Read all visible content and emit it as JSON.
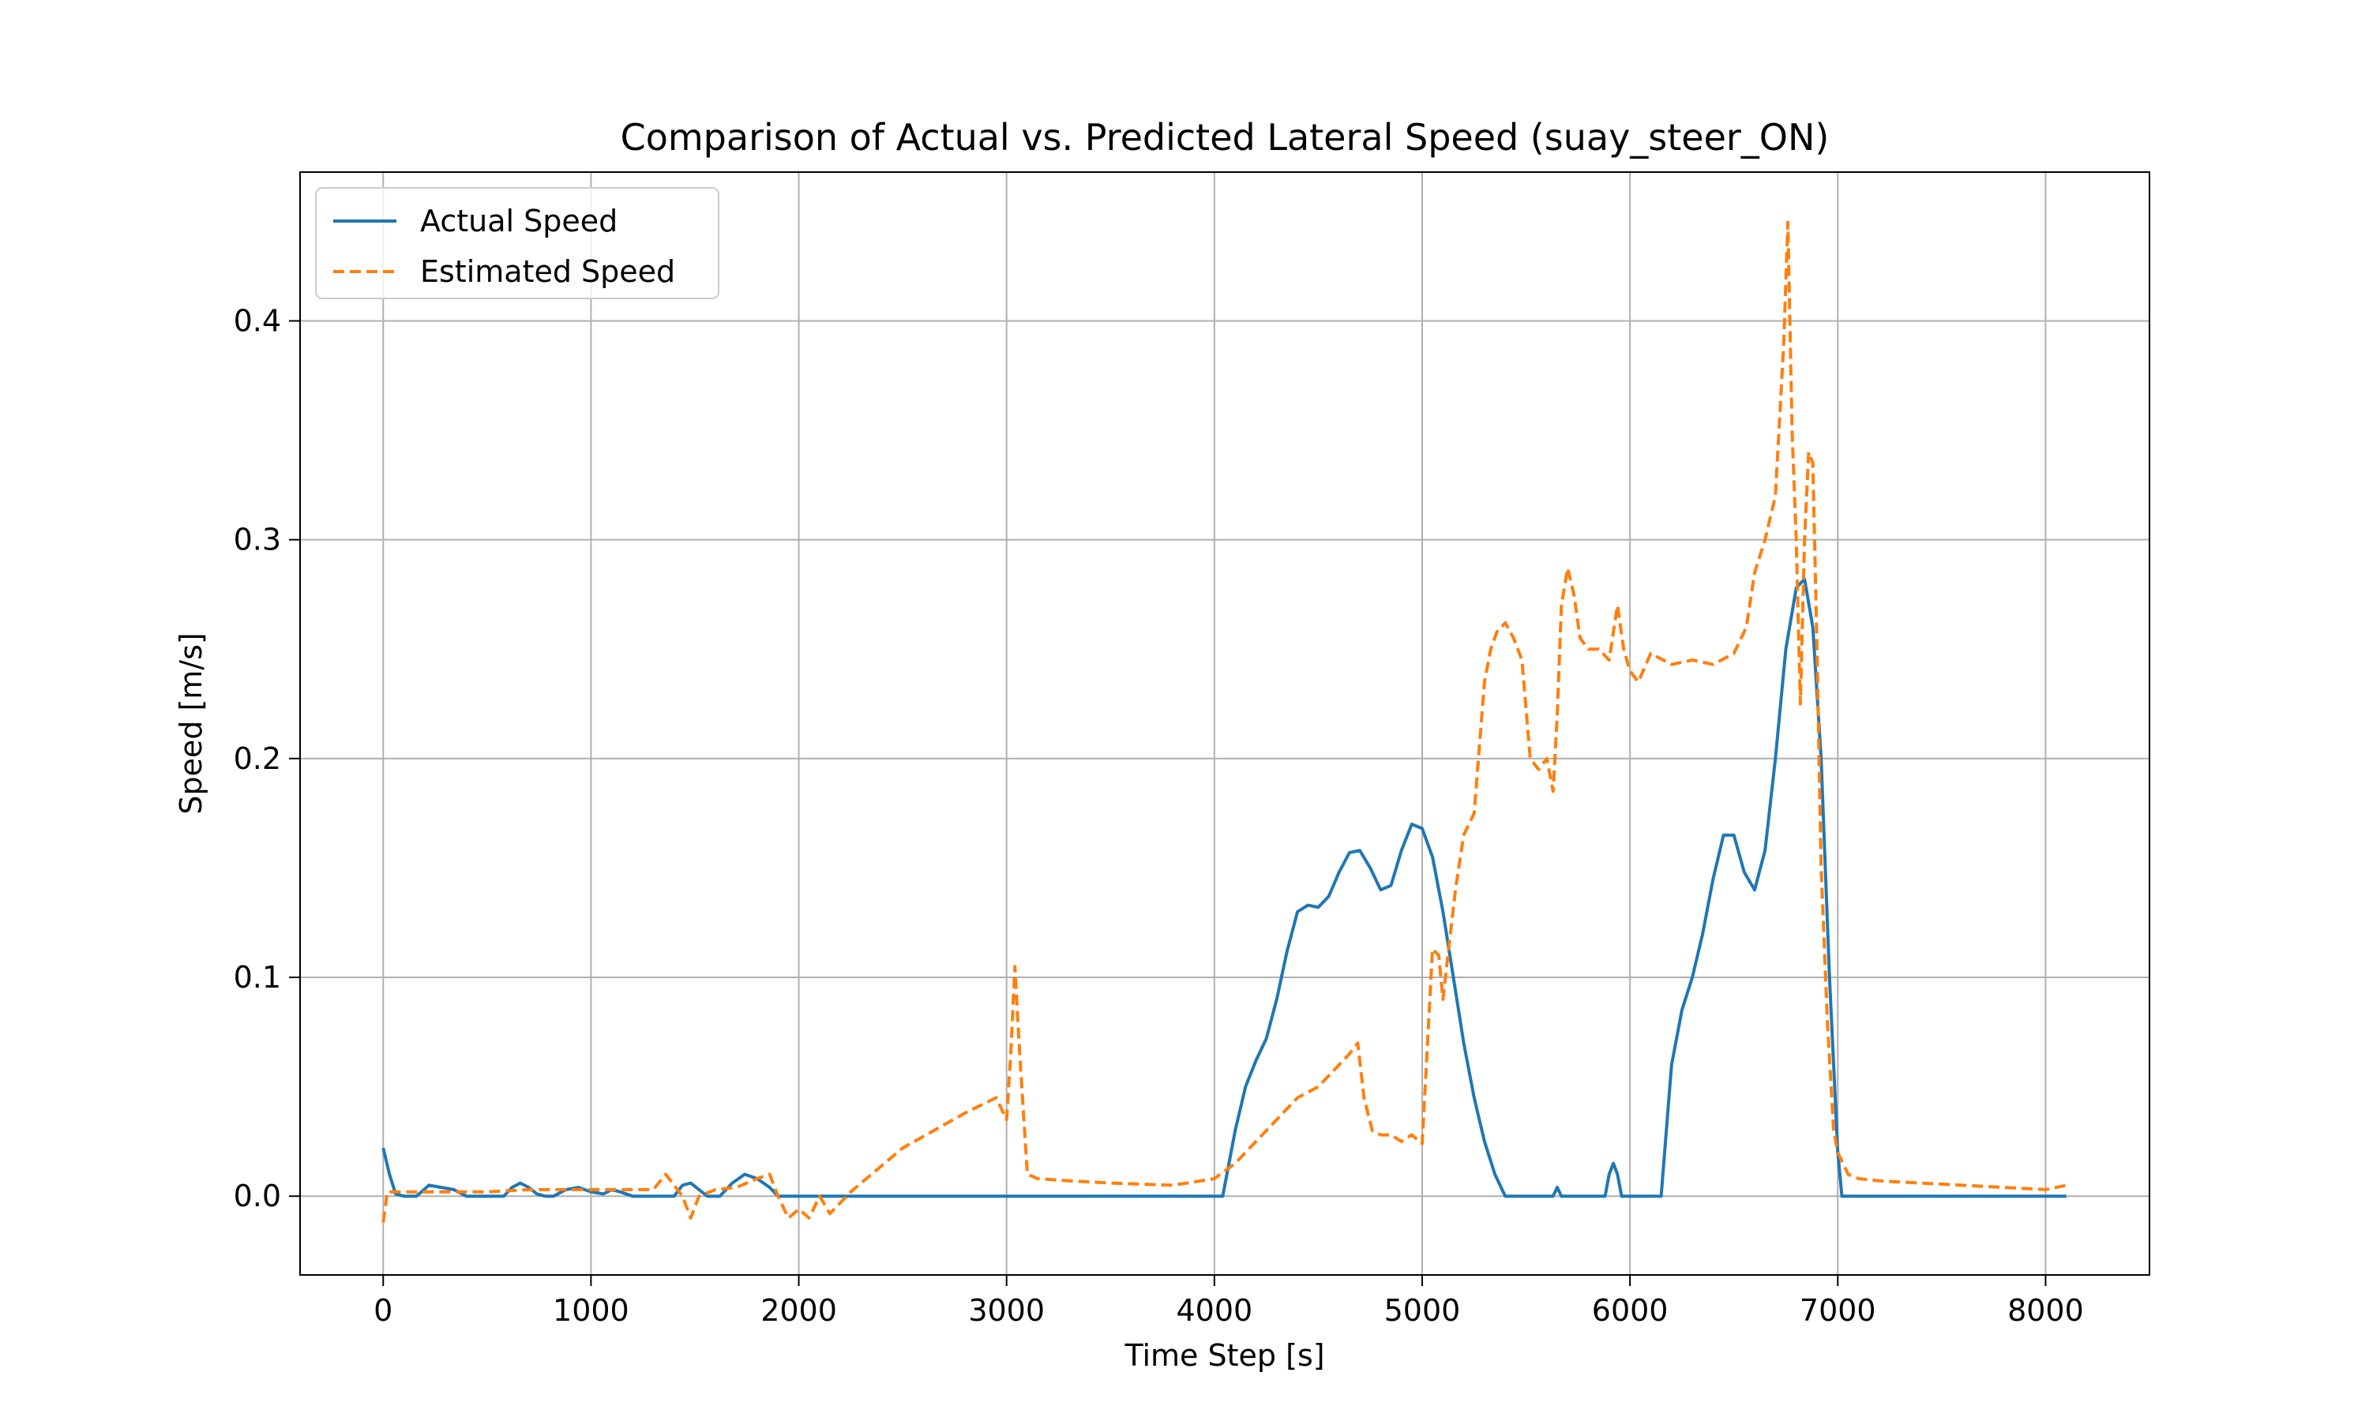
{
  "chart_data": {
    "type": "line",
    "title": "Comparison of Actual vs. Predicted Lateral Speed (suay_steer_ON)",
    "xlabel": "Time Step [s]",
    "ylabel": "Speed [m/s]",
    "xlim": [
      -400,
      8500
    ],
    "ylim": [
      -0.036,
      0.468
    ],
    "xticks": [
      0,
      1000,
      2000,
      3000,
      4000,
      5000,
      6000,
      7000,
      8000
    ],
    "xtick_labels": [
      "0",
      "1000",
      "2000",
      "3000",
      "4000",
      "5000",
      "6000",
      "7000",
      "8000"
    ],
    "yticks": [
      0.0,
      0.1,
      0.2,
      0.3,
      0.4
    ],
    "ytick_labels": [
      "0.0",
      "0.1",
      "0.2",
      "0.3",
      "0.4"
    ],
    "grid": true,
    "legend_position": "upper-left",
    "series": [
      {
        "name": "Actual Speed",
        "color": "#1f77b4",
        "style": "solid",
        "x": [
          0,
          30,
          60,
          100,
          160,
          220,
          280,
          340,
          400,
          450,
          520,
          580,
          620,
          660,
          700,
          740,
          780,
          820,
          880,
          940,
          1000,
          1060,
          1100,
          1140,
          1200,
          1300,
          1400,
          1440,
          1480,
          1520,
          1560,
          1620,
          1680,
          1740,
          1800,
          1860,
          1900,
          2000,
          2500,
          3000,
          3500,
          4000,
          4040,
          4100,
          4150,
          4200,
          4250,
          4300,
          4350,
          4400,
          4450,
          4500,
          4550,
          4600,
          4650,
          4700,
          4750,
          4800,
          4850,
          4900,
          4950,
          5000,
          5050,
          5100,
          5150,
          5200,
          5250,
          5300,
          5350,
          5400,
          5450,
          5500,
          5600,
          5630,
          5650,
          5670,
          5700,
          5800,
          5880,
          5900,
          5920,
          5940,
          5960,
          6000,
          6100,
          6150,
          6200,
          6250,
          6300,
          6350,
          6400,
          6450,
          6500,
          6550,
          6600,
          6650,
          6700,
          6750,
          6800,
          6840,
          6880,
          6920,
          6960,
          7000,
          7020,
          7050,
          7500,
          8000,
          8100
        ],
        "y": [
          0.022,
          0.01,
          0.001,
          0.0,
          0.0,
          0.005,
          0.004,
          0.003,
          0.0,
          0.0,
          0.0,
          0.0,
          0.004,
          0.006,
          0.004,
          0.001,
          0.0,
          0.0,
          0.003,
          0.004,
          0.002,
          0.001,
          0.003,
          0.002,
          0.0,
          0.0,
          0.0,
          0.005,
          0.006,
          0.003,
          0.0,
          0.0,
          0.006,
          0.01,
          0.008,
          0.004,
          0.0,
          0.0,
          0.0,
          0.0,
          0.0,
          0.0,
          0.0,
          0.03,
          0.05,
          0.062,
          0.072,
          0.09,
          0.112,
          0.13,
          0.133,
          0.132,
          0.137,
          0.148,
          0.157,
          0.158,
          0.15,
          0.14,
          0.142,
          0.158,
          0.17,
          0.168,
          0.155,
          0.13,
          0.1,
          0.07,
          0.045,
          0.025,
          0.01,
          0.0,
          0.0,
          0.0,
          0.0,
          0.0,
          0.004,
          0.0,
          0.0,
          0.0,
          0.0,
          0.01,
          0.015,
          0.01,
          0.0,
          0.0,
          0.0,
          0.0,
          0.06,
          0.085,
          0.1,
          0.12,
          0.145,
          0.165,
          0.165,
          0.148,
          0.14,
          0.158,
          0.2,
          0.25,
          0.278,
          0.282,
          0.26,
          0.2,
          0.1,
          0.02,
          0.0,
          0.0,
          0.0,
          0.0,
          0.0
        ]
      },
      {
        "name": "Estimated Speed",
        "color": "#ff7f0e",
        "style": "dashed",
        "x": [
          0,
          20,
          60,
          150,
          300,
          500,
          700,
          900,
          1100,
          1300,
          1360,
          1400,
          1440,
          1480,
          1520,
          1600,
          1700,
          1800,
          1860,
          1900,
          1950,
          2000,
          2050,
          2100,
          2150,
          2200,
          2250,
          2350,
          2500,
          2650,
          2800,
          2950,
          3000,
          3020,
          3040,
          3060,
          3080,
          3100,
          3150,
          3300,
          3500,
          3800,
          4000,
          4100,
          4200,
          4300,
          4400,
          4500,
          4600,
          4650,
          4690,
          4720,
          4760,
          4800,
          4850,
          4900,
          4950,
          5000,
          5020,
          5050,
          5080,
          5100,
          5130,
          5160,
          5200,
          5250,
          5300,
          5330,
          5360,
          5400,
          5440,
          5480,
          5520,
          5560,
          5600,
          5630,
          5650,
          5670,
          5700,
          5730,
          5760,
          5800,
          5850,
          5900,
          5940,
          5970,
          6000,
          6040,
          6100,
          6200,
          6300,
          6400,
          6500,
          6560,
          6600,
          6650,
          6700,
          6740,
          6760,
          6780,
          6800,
          6820,
          6840,
          6860,
          6880,
          6900,
          6920,
          6950,
          6980,
          7000,
          7050,
          7100,
          7200,
          7400,
          7600,
          7800,
          8000,
          8100
        ],
        "y": [
          -0.012,
          0.002,
          0.002,
          0.002,
          0.002,
          0.002,
          0.003,
          0.003,
          0.003,
          0.003,
          0.01,
          0.005,
          0.0,
          -0.01,
          0.0,
          0.003,
          0.004,
          0.008,
          0.01,
          0.0,
          -0.01,
          -0.006,
          -0.01,
          0.0,
          -0.008,
          -0.003,
          0.002,
          0.01,
          0.022,
          0.03,
          0.038,
          0.045,
          0.035,
          0.065,
          0.105,
          0.07,
          0.04,
          0.01,
          0.008,
          0.007,
          0.006,
          0.005,
          0.008,
          0.015,
          0.025,
          0.035,
          0.045,
          0.05,
          0.06,
          0.065,
          0.07,
          0.045,
          0.03,
          0.028,
          0.028,
          0.025,
          0.028,
          0.024,
          0.06,
          0.113,
          0.11,
          0.09,
          0.115,
          0.14,
          0.165,
          0.175,
          0.235,
          0.25,
          0.258,
          0.262,
          0.255,
          0.245,
          0.2,
          0.195,
          0.2,
          0.185,
          0.22,
          0.27,
          0.287,
          0.275,
          0.255,
          0.25,
          0.25,
          0.245,
          0.27,
          0.25,
          0.24,
          0.235,
          0.248,
          0.243,
          0.245,
          0.243,
          0.248,
          0.26,
          0.285,
          0.3,
          0.32,
          0.39,
          0.445,
          0.35,
          0.3,
          0.225,
          0.3,
          0.34,
          0.335,
          0.25,
          0.15,
          0.08,
          0.03,
          0.02,
          0.01,
          0.008,
          0.007,
          0.006,
          0.005,
          0.004,
          0.003,
          0.005
        ]
      }
    ]
  }
}
